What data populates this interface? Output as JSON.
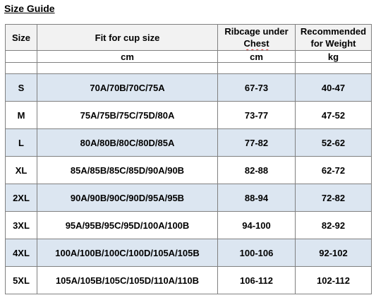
{
  "title": "Size Guide",
  "headers": {
    "size": "Size",
    "fit": "Fit for cup size",
    "ribcage_line1": "Ribcage under",
    "ribcage_line2": "Chest",
    "weight_line1": "Recommended",
    "weight_line2": "for Weight"
  },
  "units": {
    "size": "",
    "fit": "cm",
    "ribcage": "cm",
    "weight": "kg"
  },
  "rows": [
    {
      "size": "S",
      "cup": "70A/70B/70C/75A",
      "ribcage": "67-73",
      "weight": "40-47"
    },
    {
      "size": "M",
      "cup": "75A/75B/75C/75D/80A",
      "ribcage": "73-77",
      "weight": "47-52"
    },
    {
      "size": "L",
      "cup": "80A/80B/80C/80D/85A",
      "ribcage": "77-82",
      "weight": "52-62"
    },
    {
      "size": "XL",
      "cup": "85A/85B/85C/85D/90A/90B",
      "ribcage": "82-88",
      "weight": "62-72"
    },
    {
      "size": "2XL",
      "cup": "90A/90B/90C/90D/95A/95B",
      "ribcage": "88-94",
      "weight": "72-82"
    },
    {
      "size": "3XL",
      "cup": "95A/95B/95C/95D/100A/100B",
      "ribcage": "94-100",
      "weight": "82-92"
    },
    {
      "size": "4XL",
      "cup": "100A/100B/100C/100D/105A/105B",
      "ribcage": "100-106",
      "weight": "92-102"
    },
    {
      "size": "5XL",
      "cup": "105A/105B/105C/105D/110A/110B",
      "ribcage": "106-112",
      "weight": "102-112"
    }
  ],
  "colors": {
    "shaded_row": "#dce6f1",
    "header_bg": "#f2f2f2",
    "border": "#808080",
    "spellcheck_underline": "#e03030"
  }
}
